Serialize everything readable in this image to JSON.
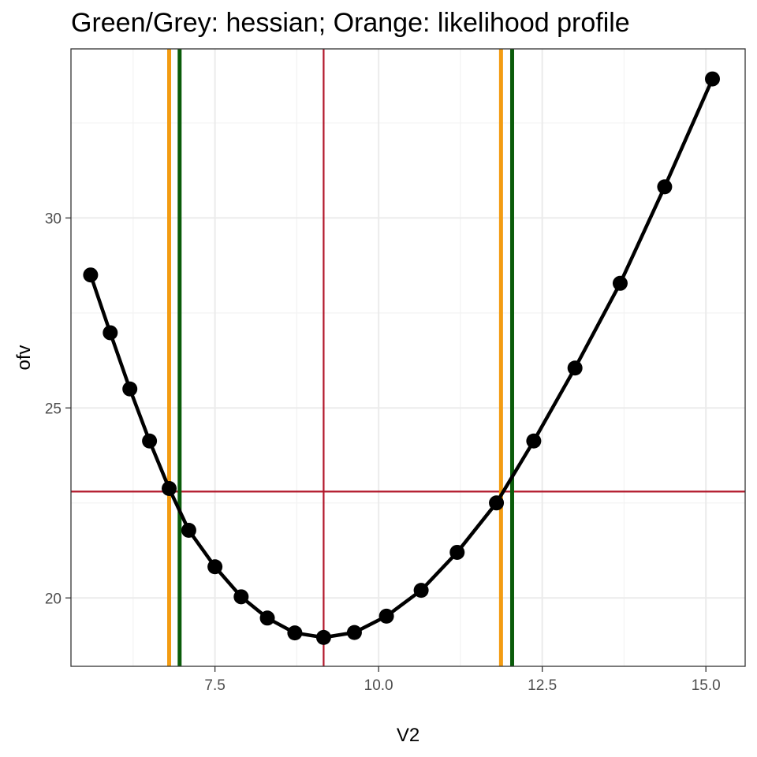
{
  "chart_data": {
    "type": "line",
    "title": "Green/Grey: hessian; Orange: likelihood profile",
    "xlabel": "V2",
    "ylabel": "ofv",
    "xlim": [
      5.3,
      15.6
    ],
    "ylim": [
      18.2,
      34.45
    ],
    "x_ticks": [
      7.5,
      10.0,
      12.5,
      15.0
    ],
    "x_tick_labels": [
      "7.5",
      "10.0",
      "12.5",
      "15.0"
    ],
    "y_ticks": [
      20,
      25,
      30
    ],
    "y_tick_labels": [
      "20",
      "25",
      "30"
    ],
    "grid": true,
    "series": [
      {
        "x": [
          5.6,
          5.9,
          6.2,
          6.5,
          6.8,
          7.1,
          7.5,
          7.9,
          8.3,
          8.72,
          9.16,
          9.63,
          10.12,
          10.65,
          11.2,
          11.8,
          12.37,
          13.0,
          13.69,
          14.37,
          15.1
        ],
        "y": [
          28.5,
          26.98,
          25.5,
          24.13,
          22.88,
          21.78,
          20.82,
          20.03,
          19.47,
          19.08,
          18.96,
          19.09,
          19.52,
          20.2,
          21.2,
          22.5,
          24.13,
          26.05,
          28.28,
          30.82,
          33.66
        ]
      }
    ],
    "reference_lines": {
      "vertical": [
        {
          "x": 9.16,
          "color": "#b2182b",
          "role": "estimate"
        },
        {
          "x": 6.8,
          "color": "#f39c12",
          "role": "likelihood profile"
        },
        {
          "x": 11.87,
          "color": "#f39c12",
          "role": "likelihood profile"
        },
        {
          "x": 6.96,
          "color": "#0a5c0a",
          "role": "hessian"
        },
        {
          "x": 12.04,
          "color": "#0a5c0a",
          "role": "hessian"
        }
      ],
      "horizontal": [
        {
          "y": 22.8,
          "color": "#b2182b"
        }
      ]
    },
    "colors": {
      "series": "#000000",
      "grid_major": "#ebebeb",
      "grid_minor": "#f3f3f3",
      "panel_border": "#333333"
    }
  }
}
